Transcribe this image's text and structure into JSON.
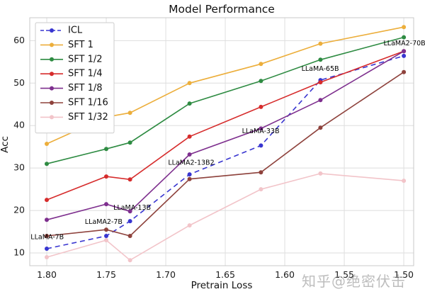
{
  "figure": {
    "title": "Model Performance",
    "watermark": "知乎@绝密伏击"
  },
  "colors": {
    "grid": "#dedede",
    "frame": "#c9c9c9",
    "tick_text": "#1a1a1a",
    "annotation_text": "#000000"
  },
  "chart_data": {
    "type": "line",
    "title": "Model Performance",
    "xlabel": "Pretrain Loss",
    "ylabel": "Acc",
    "grid": true,
    "legend_position": "upper left",
    "x_axis_reversed": true,
    "xlim": [
      1.8143,
      1.4917
    ],
    "ylim": [
      7.0,
      65.4
    ],
    "x_tick_labels": [
      "1.80",
      "1.75",
      "1.70",
      "1.65",
      "1.60",
      "1.55",
      "1.50"
    ],
    "x_tick_values": [
      1.8,
      1.75,
      1.7,
      1.65,
      1.6,
      1.55,
      1.5
    ],
    "y_ticks": [
      10,
      20,
      30,
      40,
      50,
      60
    ],
    "x": [
      1.8,
      1.75,
      1.73,
      1.68,
      1.62,
      1.57,
      1.5
    ],
    "series": [
      {
        "name": "ICL",
        "color": "#3835d0",
        "dashed": true,
        "values": [
          11.0,
          14.0,
          17.5,
          28.5,
          35.3,
          50.7,
          56.4
        ]
      },
      {
        "name": "SFT 1",
        "color": "#ecae3b",
        "dashed": false,
        "values": [
          35.7,
          42.0,
          43.0,
          50.0,
          54.5,
          59.3,
          63.2
        ]
      },
      {
        "name": "SFT 1/2",
        "color": "#2e8b42",
        "dashed": false,
        "values": [
          31.0,
          34.5,
          36.0,
          45.2,
          50.5,
          55.5,
          60.8
        ]
      },
      {
        "name": "SFT 1/4",
        "color": "#d62c2c",
        "dashed": false,
        "values": [
          22.5,
          28.0,
          27.3,
          37.4,
          44.4,
          50.2,
          57.5
        ]
      },
      {
        "name": "SFT 1/8",
        "color": "#7e2f8e",
        "dashed": false,
        "values": [
          17.8,
          21.5,
          19.8,
          33.2,
          39.3,
          46.0,
          57.5
        ]
      },
      {
        "name": "SFT 1/16",
        "color": "#8e423c",
        "dashed": false,
        "values": [
          14.0,
          15.5,
          14.0,
          27.4,
          29.0,
          39.5,
          52.6
        ]
      },
      {
        "name": "SFT 1/32",
        "color": "#f2c4c9",
        "dashed": false,
        "values": [
          9.0,
          13.0,
          8.3,
          16.5,
          25.0,
          28.7,
          27.0
        ]
      }
    ],
    "annotations": [
      {
        "text": "LLaMA-7B",
        "loss": 1.8135,
        "acc": 13.7
      },
      {
        "text": "LLaMA2-7B",
        "loss": 1.768,
        "acc": 17.3
      },
      {
        "text": "LLaMA-13B",
        "loss": 1.744,
        "acc": 20.6
      },
      {
        "text": "LLaMA2-13B2",
        "loss": 1.698,
        "acc": 31.2
      },
      {
        "text": "LLaMA-33B",
        "loss": 1.636,
        "acc": 38.6
      },
      {
        "text": "LLaMA-65B",
        "loss": 1.586,
        "acc": 53.3
      },
      {
        "text": "LLaMA2-70B",
        "loss": 1.517,
        "acc": 59.3
      }
    ]
  }
}
